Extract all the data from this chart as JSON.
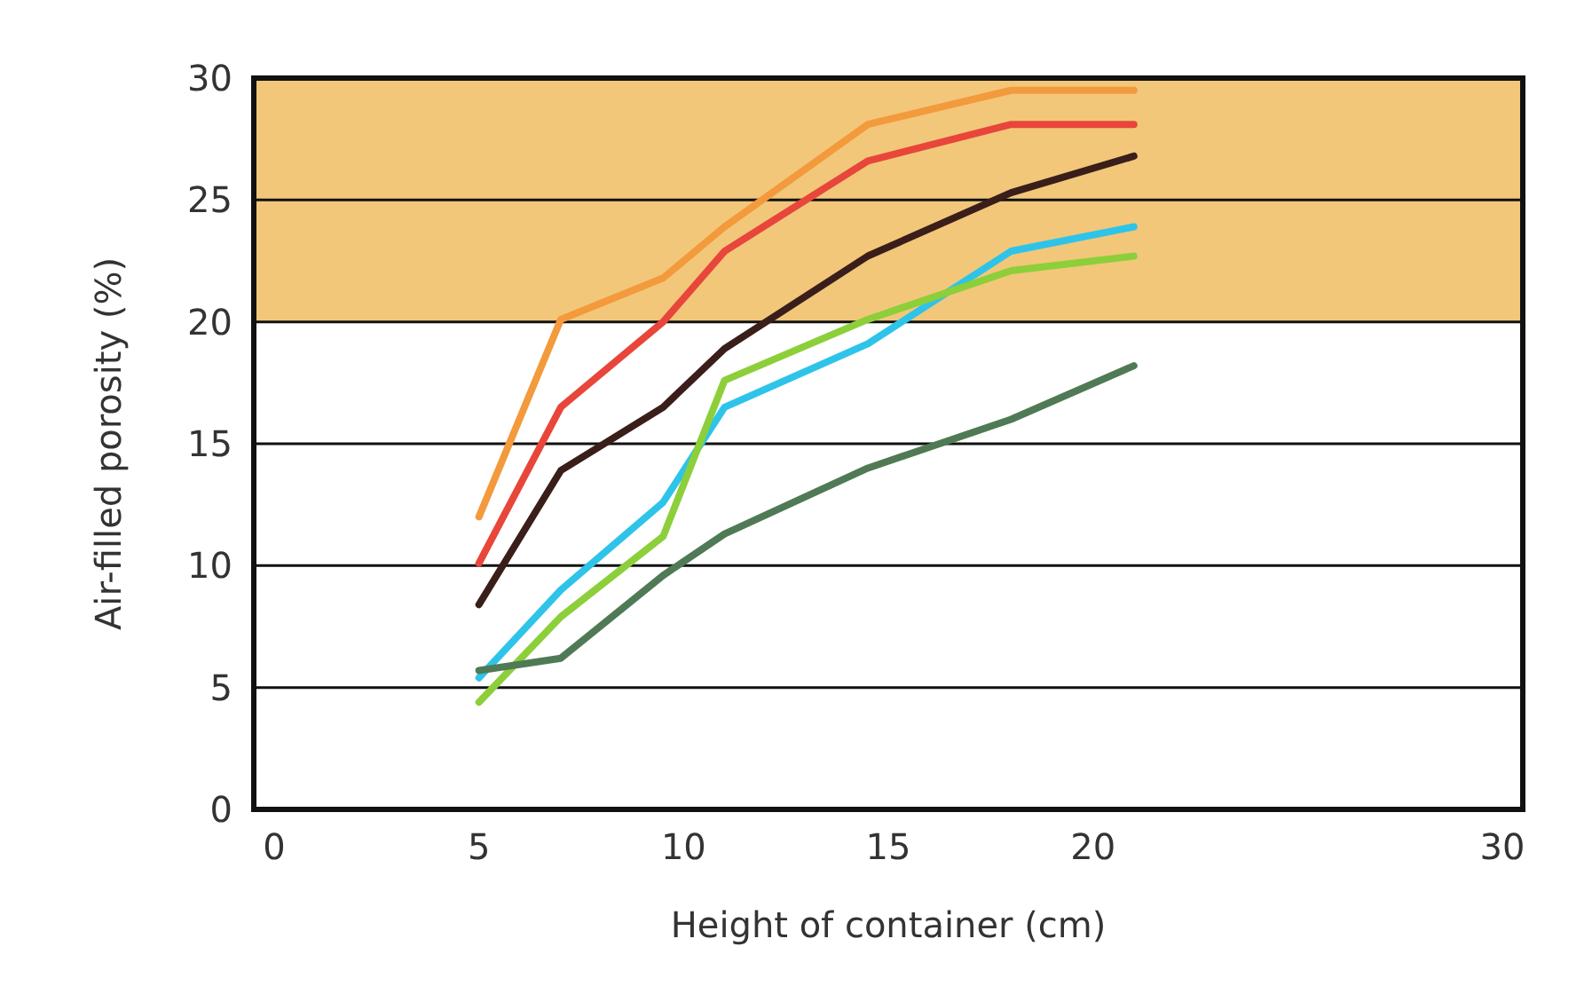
{
  "chart_data": {
    "type": "line",
    "xlabel": "Height of container (cm)",
    "ylabel": "Air-filled porosity (%)",
    "x": [
      5,
      7,
      9.5,
      11,
      14.5,
      18,
      21
    ],
    "series": [
      {
        "color": "#f39a3c",
        "values": [
          12.0,
          20.1,
          21.8,
          23.9,
          28.1,
          29.5,
          29.5
        ]
      },
      {
        "color": "#e8463a",
        "values": [
          10.1,
          16.5,
          20.0,
          22.9,
          26.6,
          28.1,
          28.1
        ]
      },
      {
        "color": "#3a1e1a",
        "values": [
          8.4,
          13.9,
          16.5,
          18.9,
          22.7,
          25.3,
          26.8
        ]
      },
      {
        "color": "#2ec4ea",
        "values": [
          5.4,
          9.0,
          12.6,
          16.5,
          19.1,
          22.9,
          23.9
        ]
      },
      {
        "color": "#8ccf3a",
        "values": [
          4.4,
          7.9,
          11.2,
          17.6,
          20.1,
          22.1,
          22.7
        ]
      },
      {
        "color": "#4f7a55",
        "values": [
          5.7,
          6.2,
          9.6,
          11.3,
          14.0,
          16.0,
          18.2
        ]
      }
    ],
    "xlim": [
      -0.5,
      30.5
    ],
    "xticks": [
      0,
      5,
      10,
      15,
      20,
      30
    ],
    "ylim": [
      0,
      30
    ],
    "yticks": [
      0,
      5,
      10,
      15,
      20,
      25,
      30
    ],
    "bands": [
      {
        "axis": "y",
        "from": 20,
        "to": 30,
        "color": "#f2c77a"
      }
    ],
    "grid": "y",
    "marker": "none",
    "line_style": "solid"
  }
}
